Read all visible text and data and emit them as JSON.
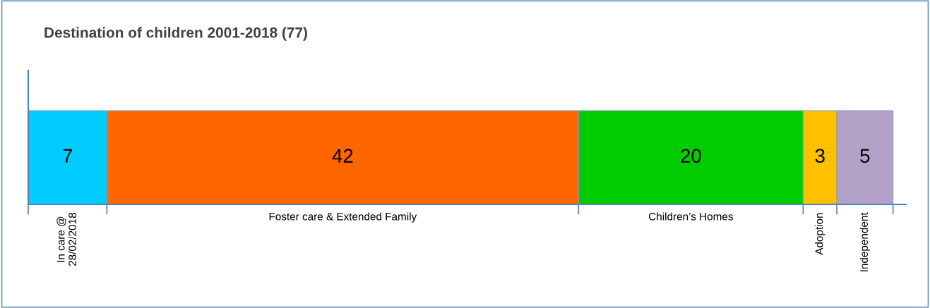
{
  "chart_data": {
    "type": "bar",
    "title": "Destination of children 2001-2018 (77)",
    "orientation": "horizontal",
    "stacked": true,
    "categories": [
      null
    ],
    "data_labels": true,
    "series": [
      {
        "name": "In care @\n28/02/2018",
        "color": "#00ccff",
        "values": [
          7
        ]
      },
      {
        "name": "Foster care & Extended Family",
        "color": "#ff6600",
        "values": [
          42
        ]
      },
      {
        "name": "Children’s Homes",
        "color": "#00cc00",
        "values": [
          20
        ]
      },
      {
        "name": "Adoption",
        "color": "#ffc000",
        "values": [
          3
        ]
      },
      {
        "name": "Independent",
        "color": "#b3a2c7",
        "values": [
          5
        ]
      }
    ]
  }
}
